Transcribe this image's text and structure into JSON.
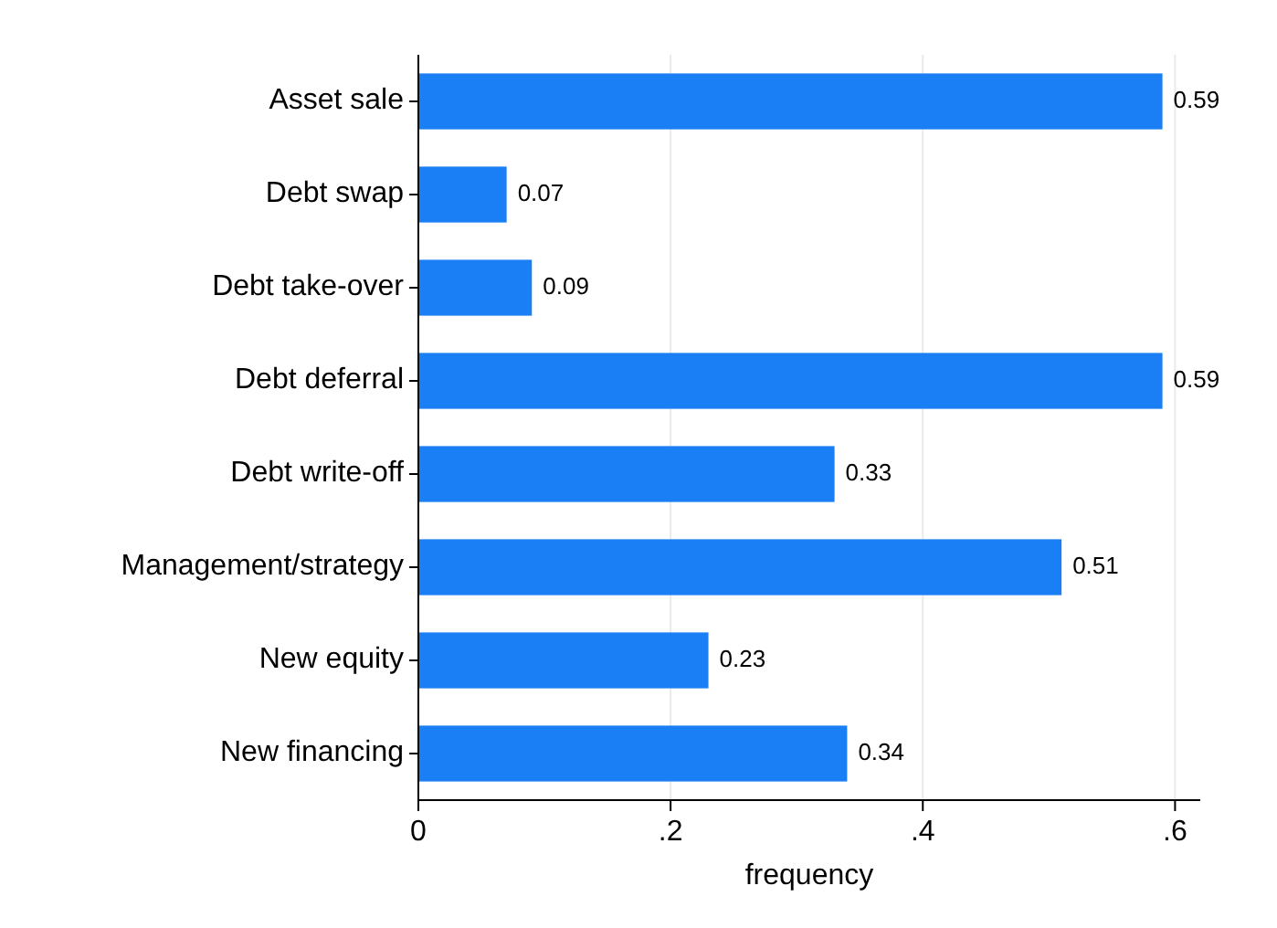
{
  "chart_data": {
    "type": "bar",
    "orientation": "horizontal",
    "xlabel": "frequency",
    "categories": [
      "Asset sale",
      "Debt swap",
      "Debt take-over",
      "Debt deferral",
      "Debt write-off",
      "Management/strategy",
      "New equity",
      "New financing"
    ],
    "values": [
      0.59,
      0.07,
      0.09,
      0.59,
      0.33,
      0.51,
      0.23,
      0.34
    ],
    "color": "#1a7ff5",
    "data_labels": true,
    "grid": "x",
    "xlim": [
      0,
      0.62
    ],
    "xticks": [
      0,
      {
        "value": 0.2,
        "label": ".2"
      },
      {
        "value": 0.4,
        "label": ".4"
      },
      {
        "value": 0.6,
        "label": ".6"
      }
    ]
  }
}
